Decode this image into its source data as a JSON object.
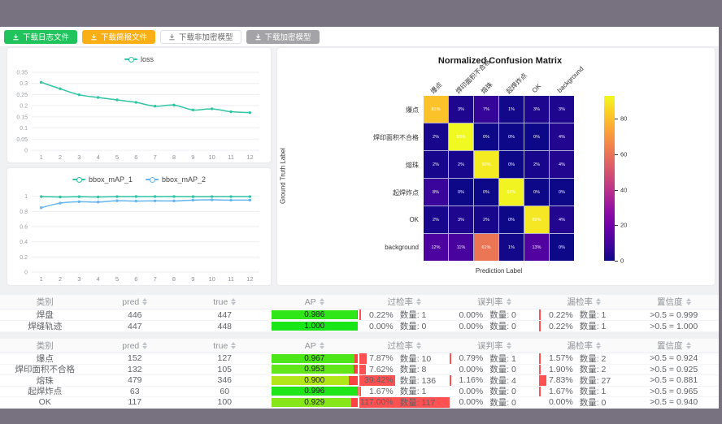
{
  "window": {
    "top_bar_color": "#787180",
    "bottom_bar_color": "#787180"
  },
  "toolbar": {
    "buttons": [
      {
        "id": "download-log-file",
        "label": "下载日志文件",
        "variant": "green",
        "icon": "download-icon"
      },
      {
        "id": "download-brief-file",
        "label": "下载简报文件",
        "variant": "orange",
        "icon": "download-icon"
      },
      {
        "id": "download-unencrypted-model",
        "label": "下载非加密模型",
        "variant": "white",
        "icon": "download-icon"
      },
      {
        "id": "download-encrypted-model",
        "label": "下载加密模型",
        "variant": "gray",
        "icon": "download-icon"
      }
    ]
  },
  "loss_chart": {
    "type": "line",
    "x": [
      "1",
      "2",
      "3",
      "4",
      "5",
      "6",
      "7",
      "8",
      "9",
      "10",
      "11",
      "12"
    ],
    "y_ticks": [
      "0",
      "0.05",
      "0.1",
      "0.15",
      "0.2",
      "0.25",
      "0.3",
      "0.35"
    ],
    "ylim": [
      0,
      0.35
    ],
    "series": [
      {
        "name": "loss",
        "color": "#2fc5a5",
        "values": [
          0.305,
          0.276,
          0.249,
          0.237,
          0.226,
          0.215,
          0.198,
          0.203,
          0.181,
          0.186,
          0.173,
          0.169
        ]
      }
    ]
  },
  "map_chart": {
    "type": "line",
    "x": [
      "1",
      "2",
      "3",
      "4",
      "5",
      "6",
      "7",
      "8",
      "9",
      "10",
      "11",
      "12"
    ],
    "y_ticks": [
      "0",
      "0.2",
      "0.4",
      "0.6",
      "0.8",
      "1"
    ],
    "ylim": [
      0,
      1.05
    ],
    "series": [
      {
        "name": "bbox_mAP_1",
        "color": "#2fc5a5",
        "values": [
          0.996,
          0.991,
          0.995,
          0.991,
          0.996,
          0.997,
          0.997,
          0.997,
          0.995,
          0.996,
          0.996,
          0.996
        ]
      },
      {
        "name": "bbox_mAP_2",
        "color": "#64b5f0",
        "values": [
          0.849,
          0.91,
          0.928,
          0.924,
          0.941,
          0.937,
          0.94,
          0.939,
          0.95,
          0.953,
          0.949,
          0.95
        ]
      }
    ]
  },
  "confusion_matrix": {
    "title": "Normalized Confusion Matrix",
    "xlabel": "Prediction Label",
    "ylabel": "Ground Truth Label",
    "labels": [
      "爆点",
      "焊印面积不合格",
      "熔珠",
      "起焊炸点",
      "OK",
      "background"
    ],
    "values_pct": [
      [
        81,
        3,
        7,
        1,
        3,
        3
      ],
      [
        2,
        93,
        0,
        0,
        0,
        4
      ],
      [
        2,
        2,
        90,
        0,
        2,
        4
      ],
      [
        8,
        0,
        0,
        92,
        0,
        0
      ],
      [
        2,
        3,
        2,
        0,
        89,
        4
      ],
      [
        12,
        11,
        61,
        1,
        13,
        0
      ]
    ],
    "vmax": 93,
    "colorbar_ticks": [
      0,
      20,
      40,
      60,
      80
    ]
  },
  "tables": {
    "headers": [
      {
        "key": "category",
        "label": "类别",
        "sortable": false
      },
      {
        "key": "pred",
        "label": "pred",
        "sortable": true
      },
      {
        "key": "true",
        "label": "true",
        "sortable": true
      },
      {
        "key": "ap",
        "label": "AP",
        "sortable": true
      },
      {
        "key": "over",
        "label": "过检率",
        "sortable": true
      },
      {
        "key": "mis",
        "label": "误判率",
        "sortable": true
      },
      {
        "key": "miss",
        "label": "漏检率",
        "sortable": true
      },
      {
        "key": "conf",
        "label": "置信度",
        "sortable": true
      }
    ],
    "count_label": "数量:",
    "table1": {
      "rows": [
        {
          "category": "焊盘",
          "pred": "446",
          "true": "447",
          "ap": 0.986,
          "ap_text": "0.986",
          "over_pct": 0.22,
          "over_text": "0.22%",
          "over_count": "1",
          "mis_pct": 0.0,
          "mis_text": "0.00%",
          "mis_count": "0",
          "miss_pct": 0.22,
          "miss_text": "0.22%",
          "miss_count": "1",
          "conf": ">0.5 = 0.999"
        },
        {
          "category": "焊缝轨迹",
          "pred": "447",
          "true": "448",
          "ap": 1.0,
          "ap_text": "1.000",
          "over_pct": 0.0,
          "over_text": "0.00%",
          "over_count": "0",
          "mis_pct": 0.0,
          "mis_text": "0.00%",
          "mis_count": "0",
          "miss_pct": 0.22,
          "miss_text": "0.22%",
          "miss_count": "1",
          "conf": ">0.5 = 1.000"
        }
      ]
    },
    "table2": {
      "rows": [
        {
          "category": "爆点",
          "pred": "152",
          "true": "127",
          "ap": 0.967,
          "ap_text": "0.967",
          "over_pct": 7.87,
          "over_text": "7.87%",
          "over_count": "10",
          "mis_pct": 0.79,
          "mis_text": "0.79%",
          "mis_count": "1",
          "miss_pct": 1.57,
          "miss_text": "1.57%",
          "miss_count": "2",
          "conf": ">0.5 = 0.924"
        },
        {
          "category": "焊印面积不合格",
          "pred": "132",
          "true": "105",
          "ap": 0.953,
          "ap_text": "0.953",
          "over_pct": 7.62,
          "over_text": "7.62%",
          "over_count": "8",
          "mis_pct": 0.0,
          "mis_text": "0.00%",
          "mis_count": "0",
          "miss_pct": 1.9,
          "miss_text": "1.90%",
          "miss_count": "2",
          "conf": ">0.5 = 0.925"
        },
        {
          "category": "熔珠",
          "pred": "479",
          "true": "346",
          "ap": 0.9,
          "ap_text": "0.900",
          "over_pct": 39.42,
          "over_text": "39.42%",
          "over_count": "136",
          "mis_pct": 1.16,
          "mis_text": "1.16%",
          "mis_count": "4",
          "miss_pct": 7.83,
          "miss_text": "7.83%",
          "miss_count": "27",
          "conf": ">0.5 = 0.881"
        },
        {
          "category": "起焊炸点",
          "pred": "63",
          "true": "60",
          "ap": 0.996,
          "ap_text": "0.996",
          "over_pct": 1.67,
          "over_text": "1.67%",
          "over_count": "1",
          "mis_pct": 0.0,
          "mis_text": "0.00%",
          "mis_count": "0",
          "miss_pct": 1.67,
          "miss_text": "1.67%",
          "miss_count": "1",
          "conf": ">0.5 = 0.965"
        },
        {
          "category": "OK",
          "pred": "117",
          "true": "100",
          "ap": 0.929,
          "ap_text": "0.929",
          "over_pct": 117.0,
          "over_text": "117.00%",
          "over_count": "117",
          "mis_pct": 0.0,
          "mis_text": "0.00%",
          "mis_count": "0",
          "miss_pct": 0.0,
          "miss_text": "0.00%",
          "miss_count": "0",
          "conf": ">0.5 = 0.940"
        }
      ]
    }
  }
}
